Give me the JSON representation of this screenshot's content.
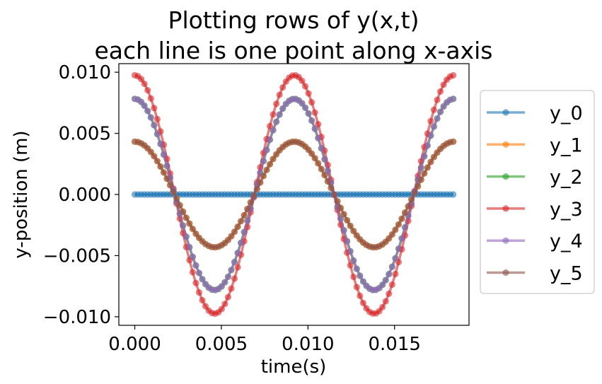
{
  "chart_data": {
    "type": "line",
    "title": [
      "Plotting rows of y(x,t)",
      "each line is one point along x-axis"
    ],
    "xlabel": "time(s)",
    "ylabel": "y-position (m)",
    "xlim": [
      -0.00092,
      0.0193
    ],
    "ylim": [
      -0.0107,
      0.0107
    ],
    "xticks": [
      0.0,
      0.005,
      0.01,
      0.015
    ],
    "xtick_labels": [
      "0.000",
      "0.005",
      "0.010",
      "0.015"
    ],
    "yticks": [
      -0.01,
      -0.005,
      0.0,
      0.005,
      0.01
    ],
    "ytick_labels": [
      "−0.010",
      "−0.005",
      "0.000",
      "0.005",
      "0.010"
    ],
    "grid": false,
    "legend_position": "outside-right",
    "marker": "circle",
    "x": {
      "start": 0.0,
      "stop": 0.01839,
      "count": 100
    },
    "period": 0.00921,
    "series": [
      {
        "name": "y_0",
        "amplitude": 0.0,
        "color": "#1f77b4"
      },
      {
        "name": "y_1",
        "amplitude": 0.00432,
        "color": "#ff7f0e"
      },
      {
        "name": "y_2",
        "amplitude": 0.00782,
        "color": "#2ca02c"
      },
      {
        "name": "y_3",
        "amplitude": 0.00975,
        "color": "#d62728"
      },
      {
        "name": "y_4",
        "amplitude": 0.00782,
        "color": "#9467bd"
      },
      {
        "name": "y_5",
        "amplitude": 0.00432,
        "color": "#8c564b"
      }
    ]
  }
}
